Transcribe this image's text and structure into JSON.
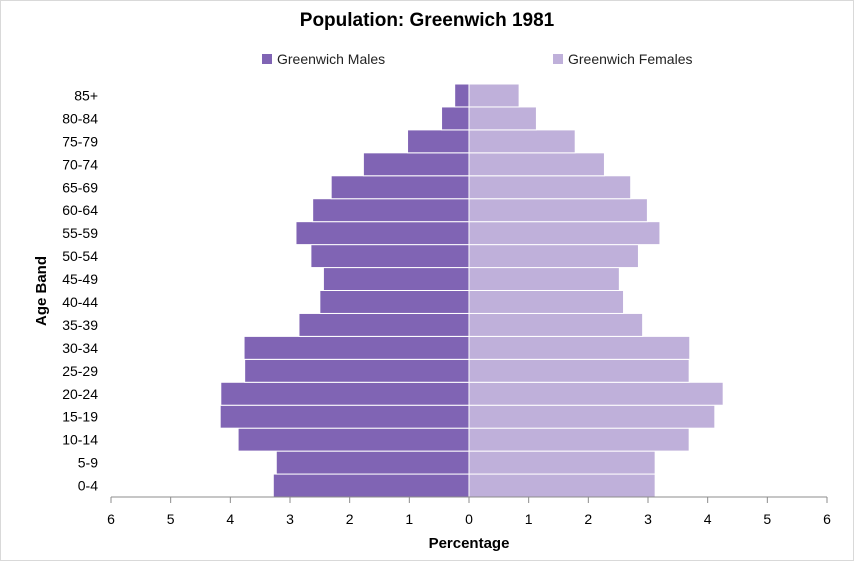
{
  "chart_data": {
    "type": "bar",
    "orientation": "horizontal",
    "title": "Population: Greenwich 1981",
    "xlabel": "Percentage",
    "ylabel": "Age Band",
    "xlim": [
      -6,
      6
    ],
    "x_ticks": [
      "6",
      "5",
      "4",
      "3",
      "2",
      "1",
      "0",
      "1",
      "2",
      "3",
      "4",
      "5",
      "6"
    ],
    "categories": [
      "0-4",
      "5-9",
      "10-14",
      "15-19",
      "20-24",
      "25-29",
      "30-34",
      "35-39",
      "40-44",
      "45-49",
      "50-54",
      "55-59",
      "60-64",
      "65-69",
      "70-74",
      "75-79",
      "80-84",
      "85+"
    ],
    "series": [
      {
        "name": "Greenwich Males",
        "color": "#8064b4",
        "values": [
          3.28,
          3.23,
          3.87,
          4.17,
          4.16,
          3.76,
          3.77,
          2.85,
          2.5,
          2.44,
          2.65,
          2.9,
          2.62,
          2.31,
          1.77,
          1.03,
          0.46,
          0.24
        ]
      },
      {
        "name": "Greenwich Females",
        "color": "#bfb0da",
        "values": [
          3.12,
          3.12,
          3.69,
          4.12,
          4.26,
          3.69,
          3.7,
          2.91,
          2.59,
          2.52,
          2.84,
          3.2,
          2.99,
          2.71,
          2.27,
          1.78,
          1.13,
          0.84
        ]
      }
    ],
    "grid": false,
    "legend_position": "top"
  }
}
